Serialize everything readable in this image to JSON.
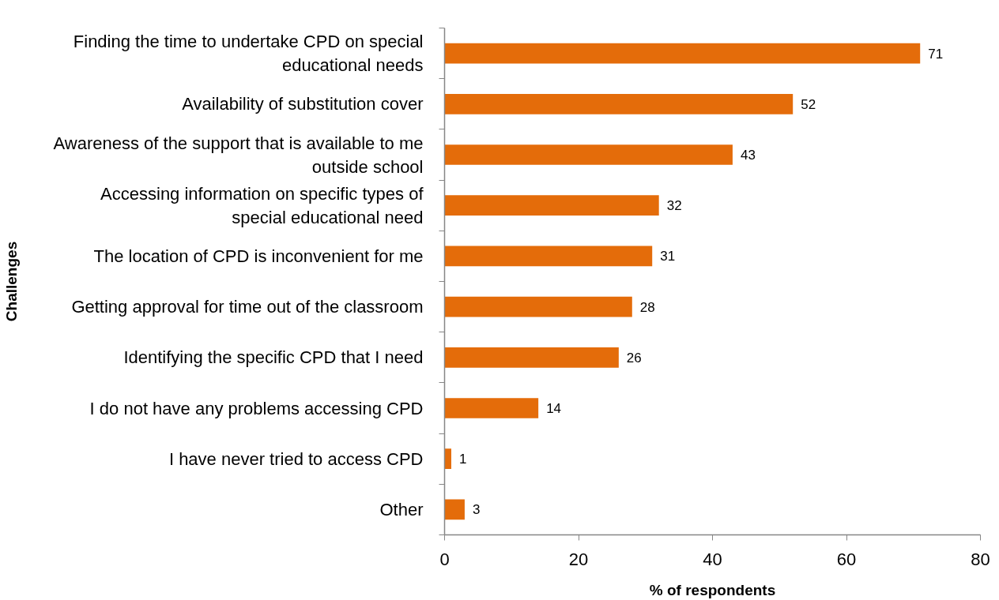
{
  "chart_data": {
    "type": "bar",
    "orientation": "horizontal",
    "xlabel": "% of respondents",
    "ylabel": "Challenges",
    "categories": [
      "Finding the time to undertake CPD on special\neducational needs",
      "Availability of substitution cover",
      "Awareness of the support that is available to me\noutside school",
      "Accessing information on specific types of\nspecial educational need",
      "The location of CPD is inconvenient for me",
      "Getting approval for time out of the classroom",
      "Identifying the specific CPD that I need",
      "I do not have any problems accessing CPD",
      "I have never tried to access CPD",
      "Other"
    ],
    "values": [
      71,
      52,
      43,
      32,
      31,
      28,
      26,
      14,
      1,
      3
    ],
    "color": "#e46c0a",
    "xlim": [
      0,
      80
    ],
    "xticks": [
      0,
      20,
      40,
      60,
      80
    ],
    "data_labels": true,
    "grid": false,
    "legend": false
  }
}
